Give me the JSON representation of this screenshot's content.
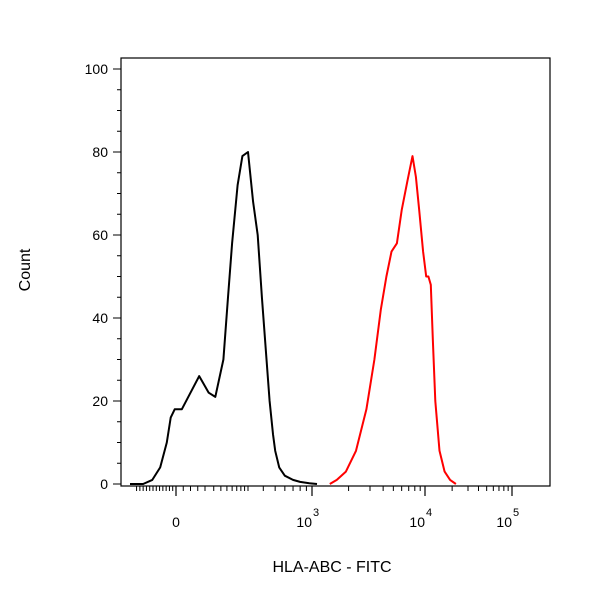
{
  "chart_data": {
    "type": "line",
    "title": "",
    "xlabel": "HLA-ABC - FITC",
    "ylabel": "Count",
    "x_scale": "biexponential",
    "xlim": [
      -350,
      150000
    ],
    "ylim": [
      0,
      100
    ],
    "y_ticks": [
      0,
      20,
      40,
      60,
      80,
      100
    ],
    "x_ticks": [
      {
        "value": 0,
        "base": "0",
        "exponent": ""
      },
      {
        "value": 1000,
        "base": "10",
        "exponent": "3"
      },
      {
        "value": 10000,
        "base": "10",
        "exponent": "4"
      },
      {
        "value": 100000,
        "base": "10",
        "exponent": "5"
      }
    ],
    "grid": false,
    "series": [
      {
        "color": "#000000",
        "x": [
          -350,
          -250,
          -180,
          -120,
          -70,
          -40,
          -10,
          20,
          50,
          80,
          110,
          130,
          160,
          180,
          200,
          230,
          260,
          300,
          330,
          360,
          390,
          420,
          450,
          480,
          500,
          540,
          600,
          700,
          800,
          950,
          1100
        ],
        "y": [
          0,
          0,
          1,
          4,
          10,
          16,
          18,
          18,
          22,
          26,
          22,
          21,
          30,
          45,
          58,
          72,
          79,
          80,
          68,
          60,
          45,
          32,
          20,
          12,
          8,
          4,
          2,
          1,
          0.5,
          0.2,
          0
        ]
      },
      {
        "color": "#ff0000",
        "x": [
          1400,
          1600,
          1900,
          2300,
          2800,
          3300,
          3800,
          4300,
          4800,
          5400,
          6000,
          6800,
          7600,
          8200,
          8800,
          9600,
          10300,
          10900,
          11600,
          12200,
          13000,
          14500,
          16500,
          19000,
          22000
        ],
        "y": [
          0,
          1,
          3,
          8,
          18,
          30,
          42,
          50,
          56,
          58,
          66,
          73,
          79,
          74,
          66,
          56,
          50,
          50,
          48,
          35,
          20,
          8,
          3,
          1,
          0
        ]
      }
    ]
  }
}
